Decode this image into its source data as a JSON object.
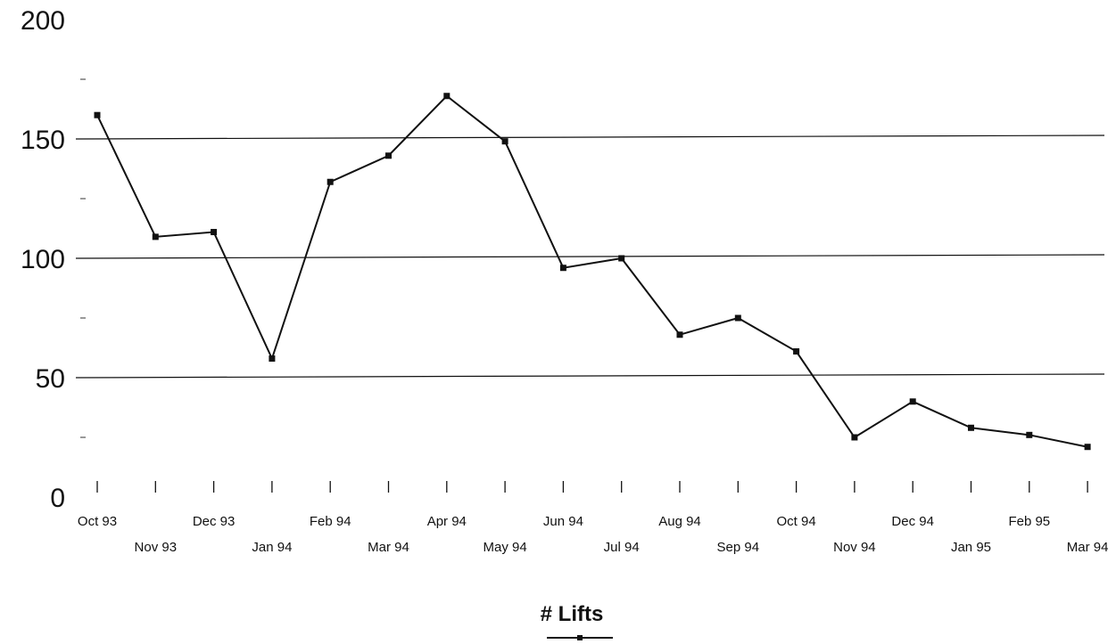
{
  "chart_data": {
    "type": "line",
    "title": "",
    "xlabel": "",
    "ylabel": "",
    "ylim": [
      0,
      200
    ],
    "yticks": [
      0,
      50,
      100,
      150,
      200
    ],
    "grid": true,
    "legend_position": "bottom-center",
    "categories": [
      "Oct 93",
      "Nov 93",
      "Dec 93",
      "Jan 94",
      "Feb 94",
      "Mar 94",
      "Apr 94",
      "May 94",
      "Jun 94",
      "Jul 94",
      "Aug 94",
      "Sep 94",
      "Oct 94",
      "Nov 94",
      "Dec 94",
      "Jan 95",
      "Feb 95",
      "Mar 94"
    ],
    "series": [
      {
        "name": "# Lifts",
        "color": "#111111",
        "values": [
          160,
          109,
          111,
          58,
          132,
          143,
          168,
          149,
          96,
          100,
          68,
          75,
          61,
          25,
          40,
          29,
          26,
          21
        ]
      }
    ]
  }
}
